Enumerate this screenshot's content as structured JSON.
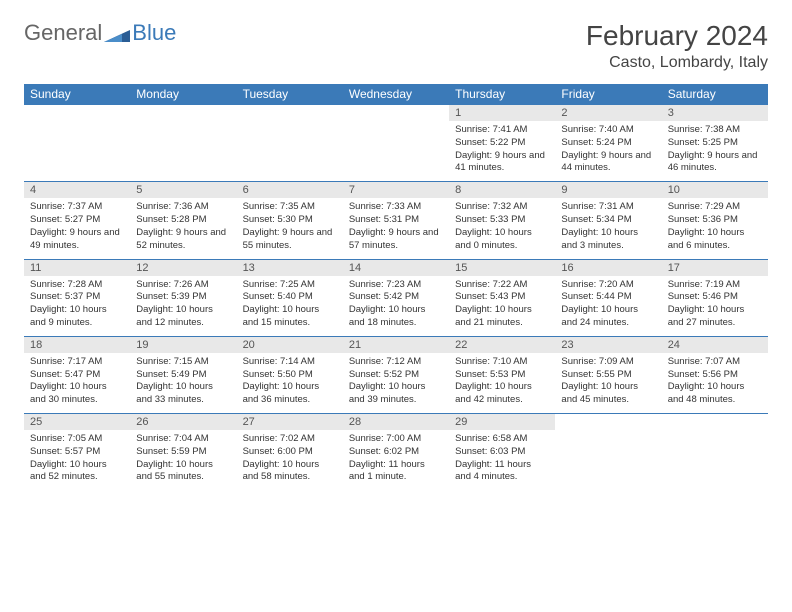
{
  "logo": {
    "text1": "General",
    "text2": "Blue"
  },
  "title": "February 2024",
  "location": "Casto, Lombardy, Italy",
  "colors": {
    "header_bg": "#3b7ab8",
    "header_text": "#ffffff",
    "daynum_bg": "#e8e8e8",
    "cell_border": "#3b7ab8",
    "body_text": "#333333",
    "page_bg": "#ffffff"
  },
  "typography": {
    "title_fontsize": 28,
    "location_fontsize": 16,
    "dayhead_fontsize": 12,
    "cell_fontsize": 9.5
  },
  "day_headers": [
    "Sunday",
    "Monday",
    "Tuesday",
    "Wednesday",
    "Thursday",
    "Friday",
    "Saturday"
  ],
  "weeks": [
    [
      {
        "empty": true
      },
      {
        "empty": true
      },
      {
        "empty": true
      },
      {
        "empty": true
      },
      {
        "n": "1",
        "sunrise": "Sunrise: 7:41 AM",
        "sunset": "Sunset: 5:22 PM",
        "daylight": "Daylight: 9 hours and 41 minutes."
      },
      {
        "n": "2",
        "sunrise": "Sunrise: 7:40 AM",
        "sunset": "Sunset: 5:24 PM",
        "daylight": "Daylight: 9 hours and 44 minutes."
      },
      {
        "n": "3",
        "sunrise": "Sunrise: 7:38 AM",
        "sunset": "Sunset: 5:25 PM",
        "daylight": "Daylight: 9 hours and 46 minutes."
      }
    ],
    [
      {
        "n": "4",
        "sunrise": "Sunrise: 7:37 AM",
        "sunset": "Sunset: 5:27 PM",
        "daylight": "Daylight: 9 hours and 49 minutes."
      },
      {
        "n": "5",
        "sunrise": "Sunrise: 7:36 AM",
        "sunset": "Sunset: 5:28 PM",
        "daylight": "Daylight: 9 hours and 52 minutes."
      },
      {
        "n": "6",
        "sunrise": "Sunrise: 7:35 AM",
        "sunset": "Sunset: 5:30 PM",
        "daylight": "Daylight: 9 hours and 55 minutes."
      },
      {
        "n": "7",
        "sunrise": "Sunrise: 7:33 AM",
        "sunset": "Sunset: 5:31 PM",
        "daylight": "Daylight: 9 hours and 57 minutes."
      },
      {
        "n": "8",
        "sunrise": "Sunrise: 7:32 AM",
        "sunset": "Sunset: 5:33 PM",
        "daylight": "Daylight: 10 hours and 0 minutes."
      },
      {
        "n": "9",
        "sunrise": "Sunrise: 7:31 AM",
        "sunset": "Sunset: 5:34 PM",
        "daylight": "Daylight: 10 hours and 3 minutes."
      },
      {
        "n": "10",
        "sunrise": "Sunrise: 7:29 AM",
        "sunset": "Sunset: 5:36 PM",
        "daylight": "Daylight: 10 hours and 6 minutes."
      }
    ],
    [
      {
        "n": "11",
        "sunrise": "Sunrise: 7:28 AM",
        "sunset": "Sunset: 5:37 PM",
        "daylight": "Daylight: 10 hours and 9 minutes."
      },
      {
        "n": "12",
        "sunrise": "Sunrise: 7:26 AM",
        "sunset": "Sunset: 5:39 PM",
        "daylight": "Daylight: 10 hours and 12 minutes."
      },
      {
        "n": "13",
        "sunrise": "Sunrise: 7:25 AM",
        "sunset": "Sunset: 5:40 PM",
        "daylight": "Daylight: 10 hours and 15 minutes."
      },
      {
        "n": "14",
        "sunrise": "Sunrise: 7:23 AM",
        "sunset": "Sunset: 5:42 PM",
        "daylight": "Daylight: 10 hours and 18 minutes."
      },
      {
        "n": "15",
        "sunrise": "Sunrise: 7:22 AM",
        "sunset": "Sunset: 5:43 PM",
        "daylight": "Daylight: 10 hours and 21 minutes."
      },
      {
        "n": "16",
        "sunrise": "Sunrise: 7:20 AM",
        "sunset": "Sunset: 5:44 PM",
        "daylight": "Daylight: 10 hours and 24 minutes."
      },
      {
        "n": "17",
        "sunrise": "Sunrise: 7:19 AM",
        "sunset": "Sunset: 5:46 PM",
        "daylight": "Daylight: 10 hours and 27 minutes."
      }
    ],
    [
      {
        "n": "18",
        "sunrise": "Sunrise: 7:17 AM",
        "sunset": "Sunset: 5:47 PM",
        "daylight": "Daylight: 10 hours and 30 minutes."
      },
      {
        "n": "19",
        "sunrise": "Sunrise: 7:15 AM",
        "sunset": "Sunset: 5:49 PM",
        "daylight": "Daylight: 10 hours and 33 minutes."
      },
      {
        "n": "20",
        "sunrise": "Sunrise: 7:14 AM",
        "sunset": "Sunset: 5:50 PM",
        "daylight": "Daylight: 10 hours and 36 minutes."
      },
      {
        "n": "21",
        "sunrise": "Sunrise: 7:12 AM",
        "sunset": "Sunset: 5:52 PM",
        "daylight": "Daylight: 10 hours and 39 minutes."
      },
      {
        "n": "22",
        "sunrise": "Sunrise: 7:10 AM",
        "sunset": "Sunset: 5:53 PM",
        "daylight": "Daylight: 10 hours and 42 minutes."
      },
      {
        "n": "23",
        "sunrise": "Sunrise: 7:09 AM",
        "sunset": "Sunset: 5:55 PM",
        "daylight": "Daylight: 10 hours and 45 minutes."
      },
      {
        "n": "24",
        "sunrise": "Sunrise: 7:07 AM",
        "sunset": "Sunset: 5:56 PM",
        "daylight": "Daylight: 10 hours and 48 minutes."
      }
    ],
    [
      {
        "n": "25",
        "sunrise": "Sunrise: 7:05 AM",
        "sunset": "Sunset: 5:57 PM",
        "daylight": "Daylight: 10 hours and 52 minutes."
      },
      {
        "n": "26",
        "sunrise": "Sunrise: 7:04 AM",
        "sunset": "Sunset: 5:59 PM",
        "daylight": "Daylight: 10 hours and 55 minutes."
      },
      {
        "n": "27",
        "sunrise": "Sunrise: 7:02 AM",
        "sunset": "Sunset: 6:00 PM",
        "daylight": "Daylight: 10 hours and 58 minutes."
      },
      {
        "n": "28",
        "sunrise": "Sunrise: 7:00 AM",
        "sunset": "Sunset: 6:02 PM",
        "daylight": "Daylight: 11 hours and 1 minute."
      },
      {
        "n": "29",
        "sunrise": "Sunrise: 6:58 AM",
        "sunset": "Sunset: 6:03 PM",
        "daylight": "Daylight: 11 hours and 4 minutes."
      },
      {
        "empty": true
      },
      {
        "empty": true
      }
    ]
  ]
}
